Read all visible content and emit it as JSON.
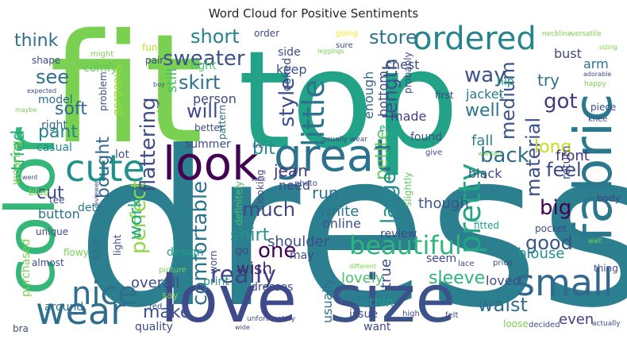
{
  "title": "Word Cloud for Positive Sentiments",
  "words": [
    {
      "text": "dress",
      "color": "#2b7f8e"
    },
    {
      "text": "top",
      "color": "#22a387"
    },
    {
      "text": "fit",
      "color": "#7ad151"
    },
    {
      "text": "love",
      "color": "#3e4a89"
    },
    {
      "text": "size",
      "color": "#3b528b"
    },
    {
      "text": "color",
      "color": "#35b779"
    },
    {
      "text": "look",
      "color": "#440154"
    },
    {
      "text": "great",
      "color": "#2c728e"
    },
    {
      "text": "fabric",
      "color": "#2a788e"
    },
    {
      "text": "wear",
      "color": "#2e6e8e"
    },
    {
      "text": "small",
      "color": "#31688e"
    },
    {
      "text": "cute",
      "color": "#21918c"
    },
    {
      "text": "ordered",
      "color": "#25848e"
    },
    {
      "text": "nice",
      "color": "#2e6e8e"
    },
    {
      "text": "pretty",
      "color": "#22a785"
    },
    {
      "text": "little",
      "color": "#2c738e"
    },
    {
      "text": "beautiful",
      "color": "#2fb47c"
    },
    {
      "text": "sweater",
      "color": "#3b528b"
    },
    {
      "text": "short",
      "color": "#26828e"
    },
    {
      "text": "store",
      "color": "#2b748e"
    },
    {
      "text": "really",
      "color": "#414487"
    },
    {
      "text": "comfortable",
      "color": "#2c738e"
    },
    {
      "text": "perfect",
      "color": "#8fd744"
    },
    {
      "text": "flattering",
      "color": "#3e4c8a"
    },
    {
      "text": "skirt",
      "color": "#2d718e"
    },
    {
      "text": "bought",
      "color": "#31688e"
    },
    {
      "text": "style",
      "color": "#3d4e8a"
    },
    {
      "text": "will",
      "color": "#3e4a89"
    },
    {
      "text": "got",
      "color": "#453781"
    },
    {
      "text": "back",
      "color": "#2f6b8e"
    },
    {
      "text": "medium",
      "color": "#3a548c"
    },
    {
      "text": "material",
      "color": "#3c4f8a"
    },
    {
      "text": "length",
      "color": "#3b528b"
    },
    {
      "text": "way",
      "color": "#3b528b"
    },
    {
      "text": "petite",
      "color": "#5ec962"
    },
    {
      "text": "much",
      "color": "#414487"
    },
    {
      "text": "shirt",
      "color": "#20928c"
    },
    {
      "text": "one",
      "color": "#440154"
    },
    {
      "text": "work",
      "color": "#22a884"
    },
    {
      "text": "long",
      "color": "#c2df23"
    },
    {
      "text": "feel",
      "color": "#3e4989"
    },
    {
      "text": "large",
      "color": "#238a8d"
    },
    {
      "text": "waist",
      "color": "#2e6e8e"
    },
    {
      "text": "good",
      "color": "#3a548c"
    },
    {
      "text": "sleeve",
      "color": "#2fb47c"
    },
    {
      "text": "big",
      "color": "#440154"
    },
    {
      "text": "soft",
      "color": "#31688e"
    },
    {
      "text": "see",
      "color": "#2e6e8e"
    },
    {
      "text": "think",
      "color": "#2e6e8e"
    },
    {
      "text": "tried",
      "color": "#25ab82"
    },
    {
      "text": "pant",
      "color": "#25848e"
    },
    {
      "text": "cut",
      "color": "#3e4a89"
    },
    {
      "text": "jean",
      "color": "#453781"
    },
    {
      "text": "bit",
      "color": "#238a8d"
    },
    {
      "text": "make",
      "color": "#3b528b"
    },
    {
      "text": "overall",
      "color": "#3e4a89"
    },
    {
      "text": "still",
      "color": "#4ac16d"
    },
    {
      "text": "run",
      "color": "#2e6e8e"
    },
    {
      "text": "white",
      "color": "#2c738e"
    },
    {
      "text": "though",
      "color": "#3b528b"
    },
    {
      "text": "black",
      "color": "#3e4a89"
    },
    {
      "text": "well",
      "color": "#2b748e"
    },
    {
      "text": "fall",
      "color": "#26828e"
    },
    {
      "text": "front",
      "color": "#46327e"
    },
    {
      "text": "shoulder",
      "color": "#3d4e8a"
    },
    {
      "text": "lovely",
      "color": "#4ac16d"
    },
    {
      "text": "loved",
      "color": "#3e4a89"
    },
    {
      "text": "blouse",
      "color": "#20928c"
    },
    {
      "text": "try",
      "color": "#2d708e"
    },
    {
      "text": "jacket",
      "color": "#2a788e"
    },
    {
      "text": "bottom",
      "color": "#3e4a89"
    },
    {
      "text": "enough",
      "color": "#31688e"
    },
    {
      "text": "made",
      "color": "#433e85"
    },
    {
      "text": "chest",
      "color": "#3b528b"
    },
    {
      "text": "arm",
      "color": "#2c738e"
    },
    {
      "text": "hip",
      "color": "#1f9e89"
    },
    {
      "text": "bust",
      "color": "#3e4a89"
    },
    {
      "text": "even",
      "color": "#433e85"
    },
    {
      "text": "model",
      "color": "#2f6b8e"
    },
    {
      "text": "person",
      "color": "#3e4a89"
    },
    {
      "text": "tight",
      "color": "#4ac16d"
    },
    {
      "text": "casual",
      "color": "#25848e"
    },
    {
      "text": "summer",
      "color": "#3e4a89"
    },
    {
      "text": "detail",
      "color": "#2a788e"
    },
    {
      "text": "button",
      "color": "#2e6e8e"
    },
    {
      "text": "purchased",
      "color": "#7ad151"
    },
    {
      "text": "print",
      "color": "#21918c"
    },
    {
      "text": "wish",
      "color": "#482475"
    },
    {
      "text": "need",
      "color": "#3e4a89"
    },
    {
      "text": "online",
      "color": "#3b528b"
    },
    {
      "text": "thin",
      "color": "#1f9e89"
    },
    {
      "text": "true",
      "color": "#3e4a89"
    },
    {
      "text": "lot",
      "color": "#3d4e8a"
    },
    {
      "text": "right",
      "color": "#31688e"
    },
    {
      "text": "wearing",
      "color": "#7ad151"
    },
    {
      "text": "around",
      "color": "#2c728e"
    },
    {
      "text": "quality",
      "color": "#3e4a89"
    },
    {
      "text": "design",
      "color": "#1f9e89"
    },
    {
      "text": "sale",
      "color": "#2e6e8e"
    },
    {
      "text": "dresses",
      "color": "#3e4a89"
    },
    {
      "text": "usually",
      "color": "#2e6e8e"
    },
    {
      "text": "found",
      "color": "#3b528b"
    },
    {
      "text": "fun",
      "color": "#c2df23"
    },
    {
      "text": "pair",
      "color": "#3e4a89"
    },
    {
      "text": "comfy",
      "color": "#5ec962"
    },
    {
      "text": "keep",
      "color": "#3b528b"
    },
    {
      "text": "side",
      "color": "#3e4a89"
    },
    {
      "text": "looked",
      "color": "#3b528b"
    },
    {
      "text": "better",
      "color": "#3e4a89"
    },
    {
      "text": "gorgeous",
      "color": "#a0da39"
    },
    {
      "text": "problem",
      "color": "#3e4a89"
    },
    {
      "text": "retailer",
      "color": "#7ad151"
    },
    {
      "text": "pattern",
      "color": "#2e6e8e"
    },
    {
      "text": "definitely",
      "color": "#4ac16d"
    },
    {
      "text": "worn",
      "color": "#3e4a89"
    },
    {
      "text": "go",
      "color": "#3e4a89"
    },
    {
      "text": "may",
      "color": "#3e4a89"
    },
    {
      "text": "sheer",
      "color": "#2a788e"
    },
    {
      "text": "review",
      "color": "#3e4a89"
    },
    {
      "text": "issue",
      "color": "#3e4a89"
    },
    {
      "text": "want",
      "color": "#3e4a89"
    },
    {
      "text": "seem",
      "color": "#3e4a89"
    },
    {
      "text": "return",
      "color": "#3e4a89"
    },
    {
      "text": "fitted",
      "color": "#1f9e89"
    },
    {
      "text": "slightly",
      "color": "#5ec962"
    },
    {
      "text": "easy",
      "color": "#1f9e89"
    },
    {
      "text": "first",
      "color": "#3e4a89"
    },
    {
      "text": "probably",
      "color": "#3e4a89"
    },
    {
      "text": "pocket",
      "color": "#3e4a89"
    },
    {
      "text": "body",
      "color": "#3e4a89"
    },
    {
      "text": "piece",
      "color": "#3e4a89"
    },
    {
      "text": "thing",
      "color": "#3e4a89"
    },
    {
      "text": "loose",
      "color": "#7ad151"
    },
    {
      "text": "decided",
      "color": "#3e4a89"
    },
    {
      "text": "actually",
      "color": "#3e4a89"
    },
    {
      "text": "high",
      "color": "#3e4a89"
    },
    {
      "text": "felt",
      "color": "#3e4a89"
    },
    {
      "text": "lace",
      "color": "#3e4a89"
    },
    {
      "text": "price",
      "color": "#3e4a89"
    },
    {
      "text": "knee",
      "color": "#3e4a89"
    },
    {
      "text": "happy",
      "color": "#7ad151"
    },
    {
      "text": "light",
      "color": "#3e4a89"
    },
    {
      "text": "looking",
      "color": "#3e4a89"
    },
    {
      "text": "different",
      "color": "#7ad151"
    },
    {
      "text": "picture",
      "color": "#7ad151"
    },
    {
      "text": "almost",
      "color": "#3e4a89"
    },
    {
      "text": "unique",
      "color": "#3e4a89"
    },
    {
      "text": "tee",
      "color": "#3e4a89"
    },
    {
      "text": "went",
      "color": "#3e4a89"
    },
    {
      "text": "blue",
      "color": "#7ad151"
    },
    {
      "text": "flowy",
      "color": "#7ad151"
    },
    {
      "text": "bra",
      "color": "#3e4a89"
    },
    {
      "text": "say",
      "color": "#7ad151"
    },
    {
      "text": "red",
      "color": "#3e4a89"
    },
    {
      "text": "order",
      "color": "#3e4a89"
    },
    {
      "text": "going",
      "color": "#fde725"
    },
    {
      "text": "neckline",
      "color": "#7ad151"
    },
    {
      "text": "versatile",
      "color": "#7ad151"
    },
    {
      "text": "might",
      "color": "#7ad151"
    },
    {
      "text": "shape",
      "color": "#3e4a89"
    },
    {
      "text": "expected",
      "color": "#3e4a89"
    },
    {
      "text": "maybe",
      "color": "#7ad151"
    },
    {
      "text": "photo",
      "color": "#3e4a89"
    },
    {
      "text": "tank",
      "color": "#3e4a89"
    },
    {
      "text": "line",
      "color": "#3e4a89"
    },
    {
      "text": "give",
      "color": "#3e4a89"
    },
    {
      "text": "usually wear",
      "color": "#3e4a89"
    },
    {
      "text": "sure",
      "color": "#3e4a89"
    },
    {
      "text": "wide",
      "color": "#3e4a89"
    },
    {
      "text": "unfortunately",
      "color": "#3e4a89"
    },
    {
      "text": "reviewer",
      "color": "#3e4a89"
    },
    {
      "text": "leggings",
      "color": "#7ad151"
    },
    {
      "text": "buy",
      "color": "#3e4a89"
    },
    {
      "text": "wanted",
      "color": "#7ad151"
    },
    {
      "text": "sizing",
      "color": "#7ad151"
    },
    {
      "text": "adorable",
      "color": "#3e4a89"
    },
    {
      "text": "wait",
      "color": "#7ad151"
    }
  ]
}
